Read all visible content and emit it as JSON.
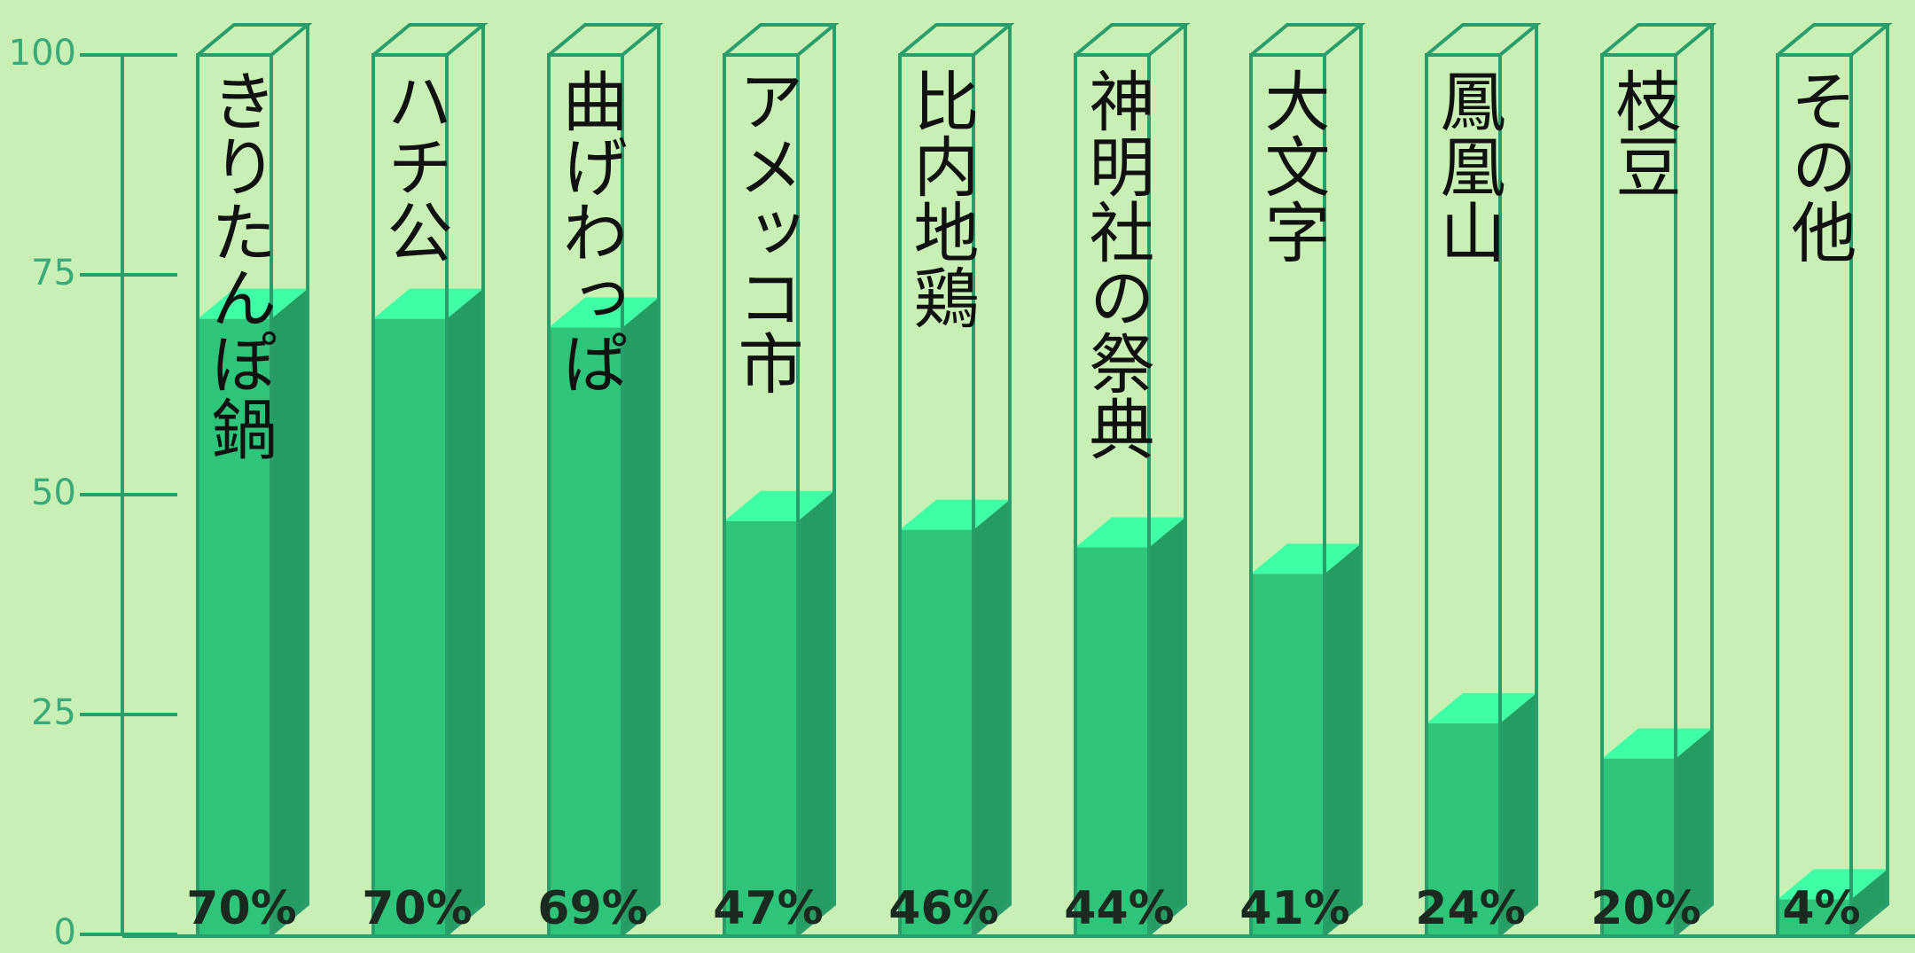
{
  "chart_data": {
    "type": "bar",
    "categories": [
      "きりたんぽ鍋",
      "ハチ公",
      "曲げわっぱ",
      "アメッコ市",
      "比内地鶏",
      "神明社の祭典",
      "大文字",
      "鳳凰山",
      "枝豆",
      "その他"
    ],
    "values": [
      70,
      70,
      69,
      47,
      46,
      44,
      41,
      24,
      20,
      4
    ],
    "value_labels": [
      "70%",
      "70%",
      "69%",
      "47%",
      "46%",
      "44%",
      "41%",
      "24%",
      "20%",
      "4%"
    ],
    "color": "#2ec47a",
    "ylim": [
      0,
      100
    ],
    "yticks": [
      0,
      25,
      50,
      75,
      100
    ]
  }
}
